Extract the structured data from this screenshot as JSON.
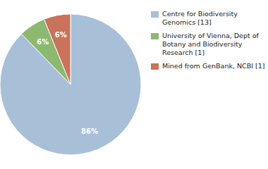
{
  "chart_data": {
    "type": "pie",
    "categories": [
      "Centre for Biodiversity\nGenomics [13]",
      "University of Vienna, Dept of\nBotany and Biodiversity\nResearch [1]",
      "Mined from GenBank, NCBI [1]"
    ],
    "values": [
      86,
      6,
      6
    ],
    "value_labels": [
      "86%",
      "6%",
      "6%"
    ],
    "data_labels": true,
    "colors": [
      "#a8bfd8",
      "#8db870",
      "#c8735a"
    ],
    "legend": "right"
  }
}
